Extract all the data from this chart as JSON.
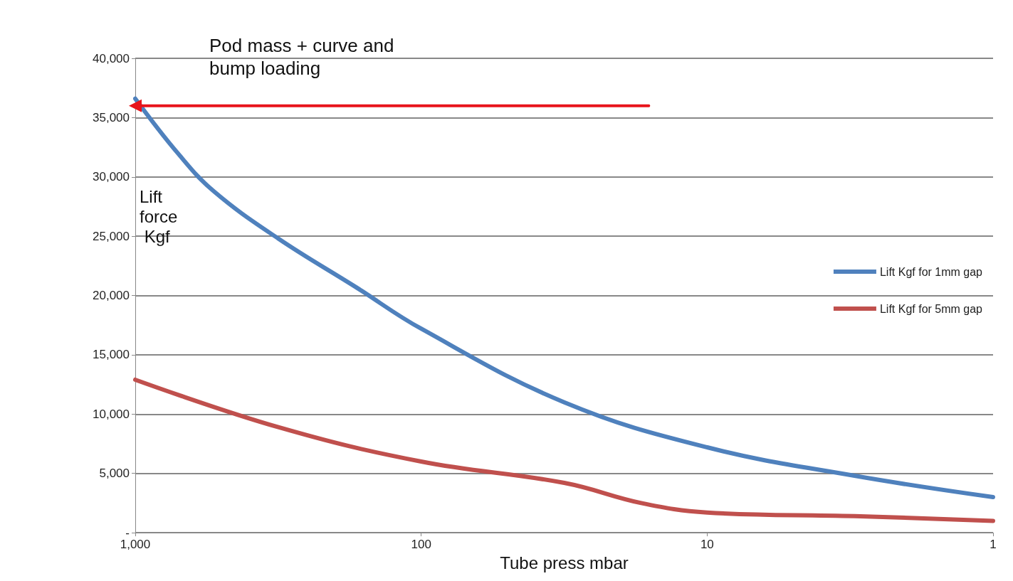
{
  "chart_data": {
    "type": "line",
    "xlabel": "Tube press mbar",
    "ylabel": "Lift force Kgf",
    "log": "x",
    "xlim": [
      1000,
      1
    ],
    "xticks": [
      {
        "value": 1000,
        "label": "1,000"
      },
      100,
      10,
      1
    ],
    "ylim": [
      0,
      40000
    ],
    "yticks": [
      {
        "value": 0,
        "label": "-"
      },
      {
        "value": 5000,
        "label": "5,000"
      },
      {
        "value": 10000,
        "label": "10,000"
      },
      {
        "value": 15000,
        "label": "15,000"
      },
      {
        "value": 20000,
        "label": "20,000"
      },
      {
        "value": 25000,
        "label": "25,000"
      },
      {
        "value": 30000,
        "label": "30,000"
      },
      {
        "value": 35000,
        "label": "35,000"
      },
      {
        "value": 40000,
        "label": "40,000"
      }
    ],
    "grid": "y",
    "legend": "right",
    "marker": "none",
    "line_style": "solid",
    "annotations": [
      "Pod mass + curve and bump loading"
    ],
    "series": [
      {
        "name": "Lift Kgf for 1mm gap",
        "color": "#4f81bd",
        "x": [
          1000,
          710,
          532,
          316,
          169,
          100,
          31.6,
          10,
          3.05,
          1
        ],
        "values": [
          36600,
          32000,
          28800,
          24800,
          20700,
          17200,
          11000,
          7200,
          4800,
          3000
        ]
      },
      {
        "type": "line",
        "color": "#e8141b",
        "marker": "triangle",
        "x": [
          16,
          1000
        ],
        "values": [
          36000,
          36000
        ]
      },
      {
        "name": "Lift Kgf for 5mm gap",
        "color": "#c0504d",
        "x": [
          1000,
          316,
          100,
          31.6,
          17,
          10,
          3.05,
          1
        ],
        "values": [
          12900,
          8900,
          6000,
          4200,
          2500,
          1700,
          1400,
          1000
        ]
      }
    ]
  }
}
